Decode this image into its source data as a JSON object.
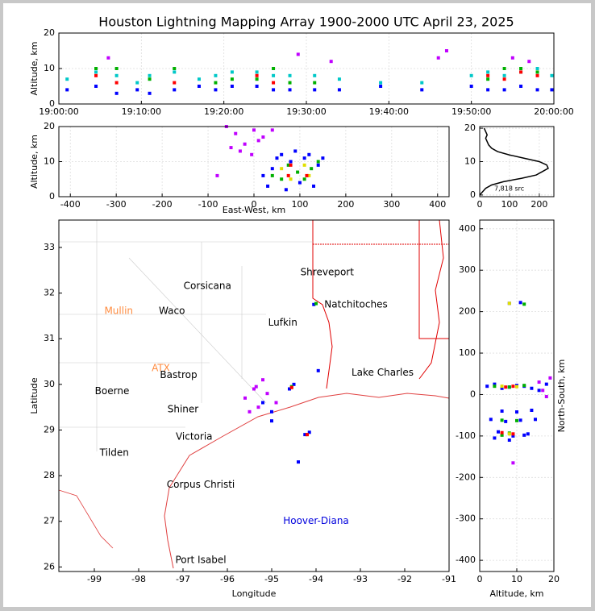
{
  "chart_data": [
    {
      "type": "scatter",
      "title": "Houston Lightning Mapping Array 1900-2000 UTC April 23, 2025",
      "ylabel": "Altitude, km",
      "xlim": [
        "19:00:00",
        "20:00:00"
      ],
      "xticks": [
        "19:00:00",
        "19:10:00",
        "19:20:00",
        "19:30:00",
        "19:40:00",
        "19:50:00",
        "20:00:00"
      ],
      "ylim": [
        0,
        20
      ],
      "yticks": [
        0,
        10,
        20
      ],
      "grid": true,
      "series": [
        {
          "color": "#0000ff",
          "x": [
            "19:01:00",
            "19:04:30",
            "19:07:00",
            "19:09:30",
            "19:11:00",
            "19:14:00",
            "19:17:00",
            "19:19:00",
            "19:21:00",
            "19:24:00",
            "19:26:00",
            "19:28:00",
            "19:31:00",
            "19:34:00",
            "19:39:00",
            "19:44:00",
            "19:50:00",
            "19:52:00",
            "19:54:00",
            "19:56:00",
            "19:58:00",
            "19:59:45"
          ],
          "values": [
            4,
            5,
            3,
            4,
            3,
            4,
            5,
            4,
            5,
            5,
            4,
            4,
            4,
            4,
            5,
            4,
            5,
            4,
            4,
            5,
            4,
            4
          ]
        },
        {
          "color": "#00c8c8",
          "x": [
            "19:01:00",
            "19:04:30",
            "19:07:00",
            "19:09:30",
            "19:11:00",
            "19:14:00",
            "19:17:00",
            "19:19:00",
            "19:21:00",
            "19:24:00",
            "19:26:00",
            "19:28:00",
            "19:31:00",
            "19:34:00",
            "19:39:00",
            "19:44:00",
            "19:50:00",
            "19:52:00",
            "19:54:00",
            "19:56:00",
            "19:58:00",
            "19:59:45"
          ],
          "values": [
            7,
            9,
            8,
            6,
            8,
            9,
            7,
            8,
            9,
            9,
            8,
            8,
            8,
            7,
            6,
            6,
            8,
            9,
            8,
            9,
            10,
            8
          ]
        },
        {
          "color": "#00b000",
          "x": [
            "19:04:30",
            "19:07:00",
            "19:11:00",
            "19:14:00",
            "19:19:00",
            "19:21:00",
            "19:24:00",
            "19:26:00",
            "19:28:00",
            "19:31:00",
            "19:52:00",
            "19:54:00",
            "19:56:00",
            "19:58:00"
          ],
          "values": [
            10,
            10,
            7,
            10,
            6,
            7,
            7,
            10,
            6,
            6,
            7,
            10,
            10,
            9
          ]
        },
        {
          "color": "#ff0000",
          "x": [
            "19:04:30",
            "19:07:00",
            "19:14:00",
            "19:24:00",
            "19:26:00",
            "19:52:00",
            "19:54:00",
            "19:56:00",
            "19:58:00"
          ],
          "values": [
            8,
            6,
            6,
            8,
            6,
            8,
            7,
            9,
            8
          ]
        },
        {
          "color": "#c000ff",
          "x": [
            "19:06:00",
            "19:29:00",
            "19:33:00",
            "19:46:00",
            "19:47:00",
            "19:55:00",
            "19:57:00"
          ],
          "values": [
            13,
            14,
            12,
            13,
            15,
            13,
            12
          ]
        }
      ]
    },
    {
      "type": "scatter",
      "xlabel": "East-West, km",
      "ylabel": "Altitude, km",
      "xlim": [
        -425,
        425
      ],
      "xticks": [
        -400,
        -300,
        -200,
        -100,
        0,
        100,
        200,
        300,
        400
      ],
      "ylim": [
        0,
        20
      ],
      "yticks": [
        0,
        10,
        20
      ],
      "grid": true,
      "series": [
        {
          "color": "#c000ff",
          "x": [
            -60,
            -40,
            -20,
            0,
            10,
            20,
            -30,
            -50,
            40,
            -5,
            -80
          ],
          "values": [
            20,
            18,
            15,
            19,
            16,
            17,
            13,
            14,
            19,
            12,
            6
          ]
        },
        {
          "color": "#0000ff",
          "x": [
            30,
            40,
            50,
            70,
            80,
            100,
            110,
            130,
            140,
            150,
            20,
            60,
            90,
            120
          ],
          "values": [
            3,
            8,
            11,
            2,
            10,
            4,
            11,
            3,
            9,
            11,
            6,
            12,
            13,
            12
          ]
        },
        {
          "color": "#00b000",
          "x": [
            40,
            60,
            75,
            95,
            110,
            125,
            140
          ],
          "values": [
            6,
            5,
            9,
            7,
            5,
            8,
            10
          ]
        },
        {
          "color": "#e0e000",
          "x": [
            60,
            80,
            110,
            120
          ],
          "values": [
            8,
            5,
            9,
            6
          ]
        },
        {
          "color": "#ff0000",
          "x": [
            75,
            115,
            80
          ],
          "values": [
            6,
            6,
            9
          ]
        }
      ]
    },
    {
      "type": "line",
      "annotation": "7,818 src",
      "xlim": [
        0,
        249
      ],
      "xticks": [
        0,
        100,
        200
      ],
      "ylim": [
        -0.5,
        20.5
      ],
      "yticks": [
        0,
        10,
        20
      ],
      "grid": true,
      "color": "#000000",
      "x": [
        0,
        5,
        10,
        20,
        40,
        80,
        140,
        190,
        210,
        230,
        225,
        200,
        150,
        100,
        60,
        40,
        30,
        25,
        20,
        25,
        20,
        15
      ],
      "values": [
        0,
        0.5,
        1,
        2,
        3,
        4,
        5,
        6,
        7,
        8,
        9,
        10,
        11,
        12,
        13,
        14,
        15,
        16,
        17,
        18,
        19,
        20
      ]
    },
    {
      "type": "map",
      "xlabel": "Longitude",
      "ylabel": "Latitude",
      "xlim": [
        -99.8,
        -91
      ],
      "xticks": [
        -99,
        -98,
        -97,
        -96,
        -95,
        -94,
        -93,
        -92,
        -91
      ],
      "ylim": [
        25.9,
        33.6
      ],
      "yticks": [
        26,
        27,
        28,
        29,
        30,
        31,
        32,
        33
      ],
      "cities": [
        {
          "label": "Shreveport",
          "lon": -93.75,
          "lat": 32.45,
          "color": "#000000"
        },
        {
          "label": "Corsicana",
          "lon": -96.45,
          "lat": 32.15,
          "color": "#000000"
        },
        {
          "label": "Natchitoches",
          "lon": -93.1,
          "lat": 31.75,
          "color": "#000000"
        },
        {
          "label": "Mullin",
          "lon": -98.45,
          "lat": 31.6,
          "color": "#ff8c40"
        },
        {
          "label": "Waco",
          "lon": -97.25,
          "lat": 31.6,
          "color": "#000000"
        },
        {
          "label": "Lufkin",
          "lon": -94.75,
          "lat": 31.35,
          "color": "#000000"
        },
        {
          "label": "ATX",
          "lon": -97.5,
          "lat": 30.35,
          "color": "#ff8c40"
        },
        {
          "label": "Bastrop",
          "lon": -97.1,
          "lat": 30.2,
          "color": "#000000"
        },
        {
          "label": "Lake Charles",
          "lon": -92.5,
          "lat": 30.25,
          "color": "#000000"
        },
        {
          "label": "Boerne",
          "lon": -98.6,
          "lat": 29.85,
          "color": "#000000"
        },
        {
          "label": "Shiner",
          "lon": -97.0,
          "lat": 29.45,
          "color": "#000000"
        },
        {
          "label": "Victoria",
          "lon": -96.75,
          "lat": 28.85,
          "color": "#000000"
        },
        {
          "label": "Tilden",
          "lon": -98.55,
          "lat": 28.5,
          "color": "#000000"
        },
        {
          "label": "Corpus Christi",
          "lon": -96.6,
          "lat": 27.8,
          "color": "#000000"
        },
        {
          "label": "Hoover-Diana",
          "lon": -94.0,
          "lat": 27.0,
          "color": "#0000dd"
        },
        {
          "label": "Port Isabel",
          "lon": -96.6,
          "lat": 26.15,
          "color": "#000000"
        }
      ],
      "series": [
        {
          "color": "#c000ff",
          "x": [
            -95.6,
            -95.4,
            -95.3,
            -95.1,
            -95.5,
            -95.2,
            -94.9,
            -95.35
          ],
          "values": [
            29.7,
            29.9,
            29.5,
            29.8,
            29.4,
            30.1,
            29.6,
            29.95
          ]
        },
        {
          "color": "#0000ff",
          "x": [
            -94.6,
            -94.5,
            -94.25,
            -94.15,
            -95.0,
            -94.05,
            -94.4,
            -93.95,
            -95.2,
            -95.0
          ],
          "values": [
            29.9,
            30.0,
            28.9,
            28.95,
            29.2,
            31.75,
            28.3,
            30.3,
            29.6,
            29.4
          ]
        },
        {
          "color": "#00b000",
          "x": [
            -94.55,
            -94.2,
            -94.0
          ],
          "values": [
            29.95,
            28.9,
            31.77
          ]
        },
        {
          "color": "#ff0000",
          "x": [
            -94.55,
            -94.2
          ],
          "values": [
            29.93,
            28.9
          ]
        }
      ]
    },
    {
      "type": "scatter",
      "xlabel": "Altitude, km",
      "ylabel": "North-South, km",
      "xlim": [
        0,
        20
      ],
      "xticks": [
        0,
        10,
        20
      ],
      "ylim": [
        -427,
        421
      ],
      "yticks": [
        -400,
        -300,
        -200,
        -100,
        0,
        100,
        200,
        300,
        400
      ],
      "grid": true,
      "series": [
        {
          "color": "#c000ff",
          "x": [
            16,
            18,
            19,
            17,
            9
          ],
          "values": [
            30,
            -5,
            40,
            10,
            -165
          ]
        },
        {
          "color": "#0000ff",
          "x": [
            2,
            4,
            6,
            8,
            10,
            12,
            14,
            16,
            18,
            3,
            7,
            11,
            15,
            5,
            9,
            13,
            6,
            10,
            14,
            8,
            4,
            8,
            12,
            11
          ],
          "values": [
            20,
            25,
            15,
            18,
            22,
            20,
            15,
            10,
            25,
            -60,
            -65,
            -62,
            -60,
            -90,
            -100,
            -95,
            -40,
            -42,
            -38,
            220,
            -105,
            -110,
            -98,
            222
          ]
        },
        {
          "color": "#00b000",
          "x": [
            4,
            8,
            12,
            6,
            10,
            8,
            6,
            12
          ],
          "values": [
            20,
            18,
            22,
            -62,
            -63,
            -93,
            -98,
            218
          ]
        },
        {
          "color": "#e0e000",
          "x": [
            6,
            10,
            8,
            8
          ],
          "values": [
            20,
            19,
            -95,
            220
          ]
        },
        {
          "color": "#ff0000",
          "x": [
            7,
            9,
            6,
            9
          ],
          "values": [
            18,
            20,
            -92,
            -95
          ]
        }
      ]
    }
  ]
}
